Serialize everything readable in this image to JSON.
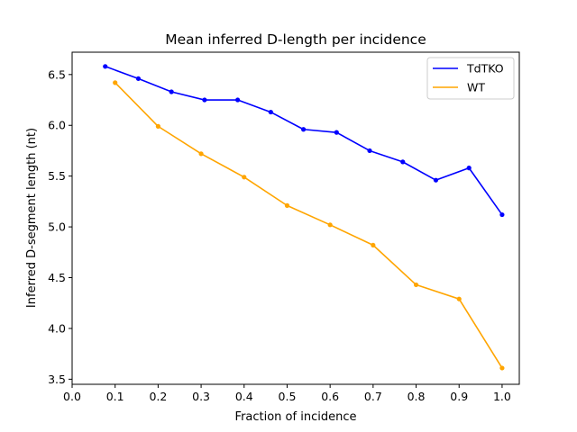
{
  "chart_data": {
    "type": "line",
    "title": "Mean inferred D-length per incidence",
    "xlabel": "Fraction of incidence",
    "ylabel": "Inferred D-segment length (nt)",
    "xlim": [
      0.0,
      1.04
    ],
    "ylim": [
      3.45,
      6.72
    ],
    "xticks": [
      "0.0",
      "0.1",
      "0.2",
      "0.3",
      "0.4",
      "0.5",
      "0.6",
      "0.7",
      "0.8",
      "0.9",
      "1.0"
    ],
    "yticks": [
      "3.5",
      "4.0",
      "4.5",
      "5.0",
      "5.5",
      "6.0",
      "6.5"
    ],
    "grid": false,
    "legend_position": "top-right",
    "series": [
      {
        "name": "TdTKO",
        "color": "#0000ff",
        "x": [
          0.077,
          0.154,
          0.231,
          0.308,
          0.385,
          0.462,
          0.538,
          0.615,
          0.692,
          0.769,
          0.846,
          0.923,
          1.0
        ],
        "y": [
          6.58,
          6.46,
          6.33,
          6.25,
          6.25,
          6.13,
          5.96,
          5.93,
          5.75,
          5.64,
          5.46,
          5.58,
          5.12
        ]
      },
      {
        "name": "WT",
        "color": "#ffa500",
        "x": [
          0.1,
          0.2,
          0.3,
          0.4,
          0.5,
          0.6,
          0.7,
          0.8,
          0.9,
          1.0
        ],
        "y": [
          6.42,
          5.99,
          5.72,
          5.49,
          5.21,
          5.02,
          4.82,
          4.43,
          4.29,
          3.61
        ]
      }
    ]
  }
}
